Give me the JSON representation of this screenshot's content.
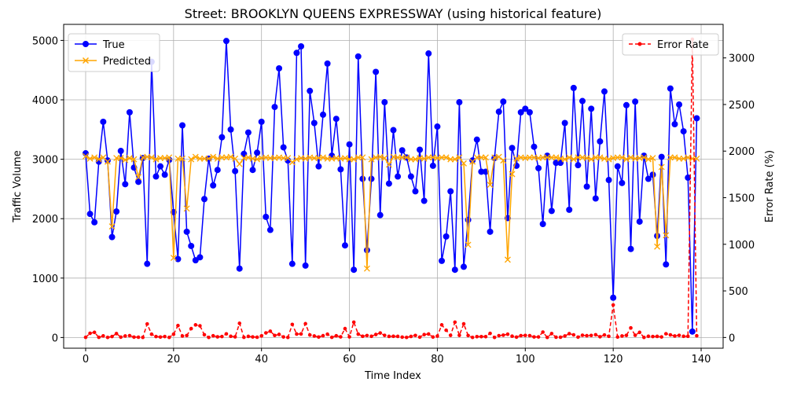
{
  "chart_data": {
    "type": "line",
    "title": "Street: BROOKLYN QUEENS EXPRESSWAY (using historical feature)",
    "xlabel": "Time Index",
    "ylabel_left": "Traffic Volume",
    "ylabel_right": "Error Rate (%)",
    "xlim": [
      -5,
      145
    ],
    "ylim_left": [
      -180,
      5270
    ],
    "ylim_right": [
      -115,
      3360
    ],
    "xticks": [
      "0",
      "20",
      "40",
      "60",
      "80",
      "100",
      "120",
      "140"
    ],
    "xtick_values": [
      0,
      20,
      40,
      60,
      80,
      100,
      120,
      140
    ],
    "yticks_left": [
      "0",
      "1000",
      "2000",
      "3000",
      "4000",
      "5000"
    ],
    "ytick_values_left": [
      0,
      1000,
      2000,
      3000,
      4000,
      5000
    ],
    "yticks_right": [
      "0",
      "500",
      "1000",
      "1500",
      "2000",
      "2500",
      "3000"
    ],
    "ytick_values_right": [
      0,
      500,
      1000,
      1500,
      2000,
      2500,
      3000
    ],
    "grid": true,
    "legend_left_placement": "top-left",
    "legend_right_placement": "top-right",
    "series": [
      {
        "name": "True",
        "axis": "left",
        "color": "#0000ff",
        "marker": "circle",
        "values": [
          3100,
          2080,
          1940,
          2960,
          3630,
          2980,
          1690,
          2120,
          3140,
          2580,
          3790,
          2860,
          2620,
          3020,
          1240,
          4640,
          2710,
          2880,
          2740,
          2990,
          2110,
          1320,
          3570,
          1780,
          1540,
          1300,
          1350,
          2330,
          3010,
          2560,
          2820,
          3370,
          4990,
          3500,
          2800,
          1160,
          3090,
          3450,
          2820,
          3110,
          3630,
          2030,
          1810,
          3880,
          4530,
          3200,
          2980,
          1240,
          4790,
          4900,
          1210,
          4150,
          3610,
          2880,
          3750,
          4610,
          3060,
          3680,
          2830,
          1550,
          3250,
          1140,
          4730,
          2670,
          1470,
          2670,
          4470,
          2060,
          3960,
          2590,
          3490,
          2710,
          3150,
          3030,
          2710,
          2460,
          3160,
          2300,
          4780,
          2890,
          3550,
          1290,
          1700,
          2460,
          1140,
          3960,
          1190,
          1980,
          2980,
          3330,
          2790,
          2790,
          1780,
          3020,
          3800,
          3970,
          2010,
          3190,
          2890,
          3790,
          3850,
          3790,
          3210,
          2850,
          1910,
          3060,
          2130,
          2940,
          2940,
          3610,
          2150,
          4200,
          2900,
          3980,
          2540,
          3850,
          2340,
          3300,
          4140,
          2650,
          670,
          2880,
          2600,
          3910,
          1490,
          3970,
          1950,
          3060,
          2670,
          2740,
          1710,
          3040,
          1230,
          4190,
          3590,
          3920,
          3470,
          2690,
          100,
          3690
        ]
      },
      {
        "name": "Predicted",
        "axis": "left",
        "color": "#ffa500",
        "marker": "x",
        "values": [
          3050,
          3010,
          3030,
          3000,
          3030,
          2960,
          1870,
          3020,
          3020,
          2990,
          3020,
          3000,
          2700,
          3030,
          3040,
          3030,
          3000,
          3020,
          3020,
          3030,
          1340,
          3010,
          3010,
          2170,
          3000,
          3040,
          3010,
          3010,
          3010,
          3040,
          3010,
          3030,
          3030,
          3040,
          3010,
          2920,
          3020,
          3030,
          3010,
          3000,
          3020,
          3030,
          3020,
          3020,
          3030,
          3020,
          3020,
          2950,
          3000,
          3020,
          3010,
          3030,
          3020,
          3020,
          3030,
          3010,
          3010,
          3020,
          3010,
          3020,
          3000,
          3000,
          3030,
          3030,
          1160,
          3000,
          3030,
          3040,
          3020,
          2910,
          3040,
          3030,
          3030,
          3030,
          3000,
          3000,
          3020,
          3010,
          3030,
          3030,
          3020,
          3030,
          3030,
          3000,
          3000,
          3030,
          2930,
          1560,
          2960,
          3030,
          3030,
          3030,
          2570,
          3030,
          3040,
          2980,
          1310,
          2750,
          3010,
          3030,
          3020,
          3030,
          3030,
          3020,
          3030,
          3030,
          3030,
          3030,
          3010,
          3000,
          3030,
          3000,
          3030,
          3030,
          3020,
          3000,
          3030,
          3030,
          3010,
          3000,
          3020,
          3030,
          3030,
          3000,
          3030,
          3010,
          3020,
          3030,
          3000,
          3020,
          1530,
          2870,
          1720,
          3030,
          3030,
          3010,
          3010,
          3030,
          3010,
          3010
        ]
      },
      {
        "name": "Error Rate",
        "axis": "right",
        "color": "#ff0000",
        "marker": "dot",
        "dashed": true,
        "values": [
          2,
          45,
          55,
          2,
          17,
          1,
          10,
          42,
          4,
          16,
          20,
          4,
          3,
          1,
          145,
          35,
          10,
          5,
          10,
          1,
          35,
          128,
          16,
          21,
          95,
          135,
          125,
          29,
          1,
          18,
          7,
          10,
          39,
          13,
          7,
          152,
          2,
          12,
          6,
          3,
          17,
          49,
          67,
          22,
          33,
          6,
          1,
          140,
          37,
          38,
          148,
          27,
          16,
          5,
          19,
          35,
          2,
          18,
          7,
          95,
          7,
          164,
          36,
          13,
          21,
          13,
          32,
          48,
          23,
          12,
          13,
          12,
          4,
          1,
          11,
          22,
          4,
          31,
          37,
          5,
          15,
          135,
          78,
          23,
          164,
          23,
          146,
          21,
          1,
          9,
          9,
          9,
          44,
          1,
          20,
          25,
          35,
          14,
          4,
          20,
          22,
          20,
          6,
          6,
          58,
          1,
          42,
          3,
          3,
          16,
          41,
          28,
          4,
          24,
          19,
          22,
          29,
          8,
          27,
          13,
          349,
          5,
          16,
          23,
          103,
          24,
          55,
          1,
          13,
          10,
          12,
          6,
          40,
          28,
          16,
          23,
          13,
          13,
          3200,
          18
        ]
      }
    ]
  }
}
